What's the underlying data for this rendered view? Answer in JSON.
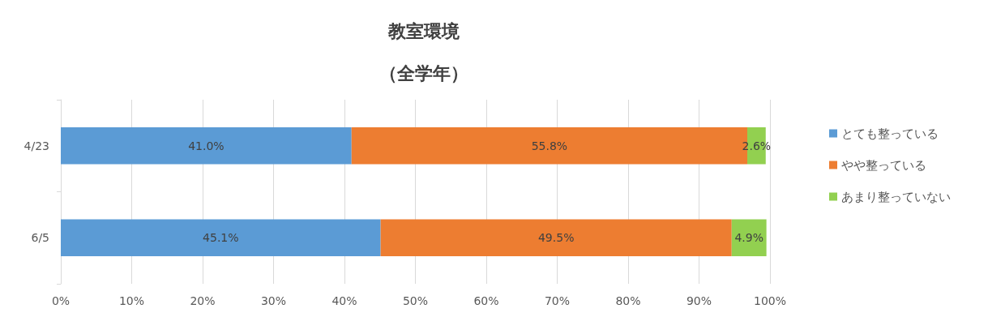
{
  "chart_data": {
    "type": "bar",
    "orientation": "horizontal",
    "stacked": true,
    "title": "教室環境",
    "subtitle": "（全学年）",
    "categories": [
      "4/23",
      "6/5"
    ],
    "series": [
      {
        "name": "とても整っている",
        "color": "#5b9bd5",
        "values": [
          41.0,
          45.1
        ],
        "value_labels": [
          "41.0%",
          "45.1%"
        ]
      },
      {
        "name": "やや整っている",
        "color": "#ed7d31",
        "values": [
          55.8,
          49.5
        ],
        "value_labels": [
          "55.8%",
          "49.5%"
        ]
      },
      {
        "name": "あまり整っていない",
        "color": "#92d050",
        "values": [
          2.6,
          4.9
        ],
        "value_labels": [
          "2.6%",
          "4.9%"
        ]
      }
    ],
    "xlim": [
      0,
      100
    ],
    "xticks": [
      {
        "value": 0,
        "label": "0%"
      },
      {
        "value": 10,
        "label": "10%"
      },
      {
        "value": 20,
        "label": "20%"
      },
      {
        "value": 30,
        "label": "30%"
      },
      {
        "value": 40,
        "label": "40%"
      },
      {
        "value": 50,
        "label": "50%"
      },
      {
        "value": 60,
        "label": "60%"
      },
      {
        "value": 70,
        "label": "70%"
      },
      {
        "value": 80,
        "label": "80%"
      },
      {
        "value": 90,
        "label": "90%"
      },
      {
        "value": 100,
        "label": "100%"
      }
    ],
    "grid": "x",
    "legend": "right"
  }
}
